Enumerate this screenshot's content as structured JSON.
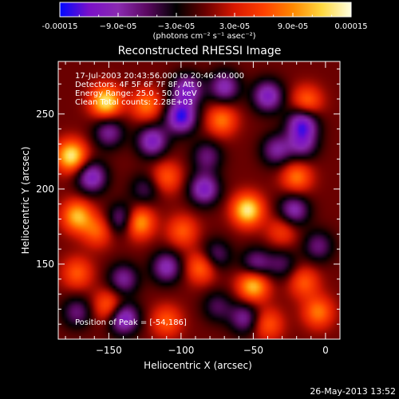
{
  "chart_data": {
    "type": "heatmap",
    "title": "Reconstructed RHESSI Image",
    "xlabel": "Heliocentric X (arcsec)",
    "ylabel": "Heliocentric Y (arcsec)",
    "xlim": [
      -185,
      10
    ],
    "ylim": [
      100,
      285
    ],
    "xticks": [
      -150,
      -100,
      -50,
      0
    ],
    "xtick_labels": [
      "−150",
      "−100",
      "−50",
      "0"
    ],
    "yticks": [
      150,
      200,
      250
    ],
    "ytick_labels": [
      "150",
      "200",
      "250"
    ],
    "grid": false,
    "colorbar": {
      "range": [
        -0.00015,
        0.00015
      ],
      "tick_labels": [
        "-0.00015",
        "−9.0e-05",
        "−3.0e-05",
        "3.0e-05",
        "9.0e-05",
        "0.00015"
      ],
      "units": "(photons cm⁻² s⁻¹ asec⁻²)",
      "colors": [
        "#0008ff",
        "#7a10c8",
        "#8a2ab0",
        "#5a0860",
        "#000000",
        "#6a0000",
        "#d81800",
        "#ff4000",
        "#ff8800",
        "#ffd840",
        "#ffffe0"
      ]
    },
    "annotations": [
      "17-Jul-2003 20:43:56.000 to 20:46:40.000",
      "Detectors: 4F 5F 6F 7F 8F, Att 0",
      "Energy Range: 25.0 - 50.0 keV",
      "Clean     Total counts: 2.28E+03"
    ],
    "peak_label": "Position of Peak = [-54,186]",
    "peak": [
      -54,
      186
    ],
    "features": [
      {
        "x": -152,
        "y": 258,
        "v": 1.0
      },
      {
        "x": -176,
        "y": 222,
        "v": 1.0
      },
      {
        "x": -172,
        "y": 182,
        "v": 0.8
      },
      {
        "x": -158,
        "y": 172,
        "v": 0.5
      },
      {
        "x": -130,
        "y": 178,
        "v": 0.9
      },
      {
        "x": -124,
        "y": 256,
        "v": 0.6
      },
      {
        "x": -110,
        "y": 208,
        "v": 0.5
      },
      {
        "x": -99,
        "y": 172,
        "v": 0.5
      },
      {
        "x": -86,
        "y": 148,
        "v": 0.6
      },
      {
        "x": -54,
        "y": 186,
        "v": 1.0
      },
      {
        "x": -72,
        "y": 246,
        "v": 0.6
      },
      {
        "x": -50,
        "y": 136,
        "v": 0.9
      },
      {
        "x": -20,
        "y": 208,
        "v": 0.6
      },
      {
        "x": -13,
        "y": 258,
        "v": 0.6
      },
      {
        "x": -30,
        "y": 172,
        "v": 0.4
      },
      {
        "x": -172,
        "y": 144,
        "v": 0.5
      },
      {
        "x": -150,
        "y": 122,
        "v": 0.6
      },
      {
        "x": -110,
        "y": 112,
        "v": 0.5
      },
      {
        "x": -15,
        "y": 138,
        "v": 0.5
      },
      {
        "x": -5,
        "y": 118,
        "v": 0.6
      },
      {
        "x": -40,
        "y": 110,
        "v": 0.5
      },
      {
        "x": -162,
        "y": 208,
        "v": -0.8
      },
      {
        "x": -150,
        "y": 238,
        "v": -0.6
      },
      {
        "x": -140,
        "y": 180,
        "v": -0.7
      },
      {
        "x": -120,
        "y": 232,
        "v": -0.8
      },
      {
        "x": -96,
        "y": 266,
        "v": -0.8
      },
      {
        "x": -100,
        "y": 248,
        "v": -1.0
      },
      {
        "x": -70,
        "y": 268,
        "v": -0.7
      },
      {
        "x": -40,
        "y": 262,
        "v": -0.8
      },
      {
        "x": -16,
        "y": 244,
        "v": -0.9
      },
      {
        "x": -16,
        "y": 230,
        "v": -0.6
      },
      {
        "x": -34,
        "y": 226,
        "v": -0.6
      },
      {
        "x": -22,
        "y": 186,
        "v": -0.7
      },
      {
        "x": -84,
        "y": 200,
        "v": -0.8
      },
      {
        "x": -82,
        "y": 222,
        "v": -0.5
      },
      {
        "x": -110,
        "y": 148,
        "v": -0.7
      },
      {
        "x": -76,
        "y": 156,
        "v": -0.5
      },
      {
        "x": -140,
        "y": 140,
        "v": -0.6
      },
      {
        "x": -140,
        "y": 114,
        "v": -0.9
      },
      {
        "x": -172,
        "y": 118,
        "v": -0.5
      },
      {
        "x": -48,
        "y": 150,
        "v": -0.6
      },
      {
        "x": -30,
        "y": 150,
        "v": -0.4
      },
      {
        "x": -56,
        "y": 114,
        "v": -0.6
      },
      {
        "x": -75,
        "y": 122,
        "v": -0.4
      },
      {
        "x": -5,
        "y": 162,
        "v": -0.5
      },
      {
        "x": -125,
        "y": 200,
        "v": -0.4
      }
    ]
  },
  "footer": {
    "date": "26-May-2013 13:52"
  }
}
